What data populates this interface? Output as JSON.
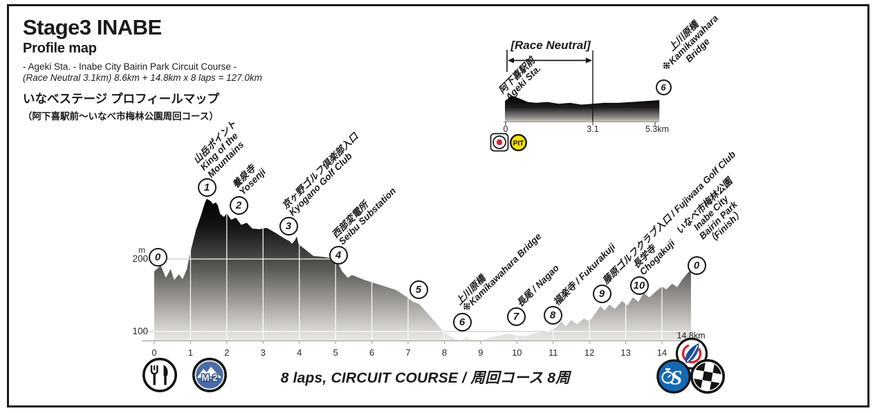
{
  "header": {
    "title": "Stage3 INABE",
    "subtitle": "Profile map",
    "course_line": "- Ageki Sta. - Inabe City Bairin Park Circuit Course -",
    "distance_line": "(Race Neutral 3.1km) 8.6km + 14.8km x 8 laps = 127.0km",
    "title_jp": "いなべステージ プロフィールマップ",
    "subtitle_jp": "（阿下喜駅前～いなべ市梅林公園周回コース）"
  },
  "neutral_section": {
    "heading": "[Race Neutral]",
    "start_label": [
      "阿下喜駅前",
      "Ageki Sta."
    ],
    "end_label": [
      "上川原橋",
      "※Kamikawahara",
      "Bridge"
    ],
    "end_marker": "6",
    "x_ticks": [
      "0",
      "3.1",
      "5.3km"
    ],
    "pit_badge": "PIT"
  },
  "main_chart": {
    "y_unit": "m",
    "y_ticks": [
      "200",
      "100"
    ],
    "x_ticks": [
      "0",
      "1",
      "2",
      "3",
      "4",
      "5",
      "6",
      "7",
      "8",
      "9",
      "10",
      "11",
      "12",
      "13",
      "14"
    ],
    "x_end_label": "14.8km",
    "start_marker": "0",
    "checkpoints": [
      {
        "marker": "1",
        "lines": [
          "山岳ポイント",
          "King of the",
          "Mountains"
        ]
      },
      {
        "marker": "2",
        "lines": [
          "養泉寺",
          "Yosenji"
        ]
      },
      {
        "marker": "3",
        "lines": [
          "京ヶ野ゴルフ倶楽部入口",
          "Kyogano Golf Club"
        ]
      },
      {
        "marker": "4",
        "lines": [
          "西部変電所",
          "Seibu Substation"
        ]
      },
      {
        "marker": "5",
        "lines": []
      },
      {
        "marker": "6",
        "lines": [
          "上川原橋",
          "※Kamikawahara Bridge"
        ]
      },
      {
        "marker": "7",
        "lines": [
          "長尾 / Nagao"
        ]
      },
      {
        "marker": "8",
        "lines": [
          "福楽寺 / Fukurakuji"
        ]
      },
      {
        "marker": "9",
        "lines": [
          "藤原ゴルフクラブ入口 / Fujiwara Golf Club"
        ]
      },
      {
        "marker": "10",
        "lines": [
          "長学寺",
          "Chogakuji"
        ]
      },
      {
        "marker": "0",
        "lines": [
          "いなべ市梅林公園",
          "Inabe City",
          "Bairin Park",
          "（Finish）"
        ],
        "align": "center"
      }
    ]
  },
  "footer": {
    "laps_text": "8 laps, CIRCUIT COURSE / 周回コース 8周"
  },
  "badges": {
    "mountain_badge_label": "M-2",
    "sprint_letter": "S"
  },
  "colors": {
    "mountain_badge_blue": "#4a6da7",
    "sprint_blue": "#1569b3",
    "pit_yellow": "#f8e100",
    "flag_red": "#d6252c",
    "logo_red": "#d6252c",
    "logo_blue": "#1b4f9c"
  },
  "chart_data": [
    {
      "type": "area",
      "title": "Stage3 INABE elevation profile",
      "xlabel": "km",
      "ylabel": "m",
      "xlim": [
        0,
        14.8
      ],
      "y_gridlines": [
        100,
        200
      ],
      "x_ticks": [
        0,
        1,
        2,
        3,
        4,
        5,
        6,
        7,
        8,
        9,
        10,
        11,
        12,
        13,
        14
      ],
      "checkpoint_km": [
        0,
        1.45,
        2.33,
        3.7,
        5.05,
        7.29,
        8.49,
        9.98,
        10.99,
        12.35,
        13.38,
        14.8
      ],
      "points": [
        [
          0,
          183
        ],
        [
          0.18,
          191
        ],
        [
          0.32,
          174
        ],
        [
          0.45,
          186
        ],
        [
          0.55,
          171
        ],
        [
          0.68,
          179
        ],
        [
          0.78,
          172
        ],
        [
          0.9,
          186
        ],
        [
          1.0,
          210
        ],
        [
          1.15,
          240
        ],
        [
          1.3,
          262
        ],
        [
          1.4,
          278
        ],
        [
          1.45,
          283
        ],
        [
          1.55,
          280
        ],
        [
          1.62,
          276
        ],
        [
          1.7,
          278
        ],
        [
          1.75,
          274
        ],
        [
          1.82,
          262
        ],
        [
          1.92,
          258
        ],
        [
          2.0,
          263
        ],
        [
          2.12,
          254
        ],
        [
          2.25,
          257
        ],
        [
          2.4,
          247
        ],
        [
          2.55,
          250
        ],
        [
          2.7,
          242
        ],
        [
          2.9,
          241
        ],
        [
          3.1,
          243
        ],
        [
          3.35,
          236
        ],
        [
          3.5,
          231
        ],
        [
          3.6,
          228
        ],
        [
          3.72,
          225
        ],
        [
          3.8,
          221
        ],
        [
          3.88,
          226
        ],
        [
          3.93,
          231
        ],
        [
          3.98,
          220
        ],
        [
          4.14,
          214
        ],
        [
          4.39,
          204
        ],
        [
          4.66,
          203
        ],
        [
          4.9,
          201
        ],
        [
          5.0,
          200
        ],
        [
          5.05,
          196
        ],
        [
          5.18,
          183
        ],
        [
          5.34,
          174
        ],
        [
          5.45,
          178
        ],
        [
          5.6,
          175
        ],
        [
          5.8,
          171
        ],
        [
          6.05,
          167
        ],
        [
          6.37,
          162
        ],
        [
          6.68,
          157
        ],
        [
          6.95,
          148
        ],
        [
          7.13,
          141
        ],
        [
          7.3,
          138
        ],
        [
          7.5,
          127
        ],
        [
          7.7,
          116
        ],
        [
          7.9,
          104
        ],
        [
          8.1,
          95
        ],
        [
          8.3,
          90
        ],
        [
          8.45,
          87
        ],
        [
          8.6,
          92
        ],
        [
          8.75,
          89
        ],
        [
          9.0,
          87
        ],
        [
          9.2,
          91
        ],
        [
          9.5,
          94
        ],
        [
          9.75,
          97
        ],
        [
          9.95,
          95
        ],
        [
          10.2,
          93
        ],
        [
          10.45,
          97
        ],
        [
          10.7,
          99
        ],
        [
          10.95,
          102
        ],
        [
          11.1,
          106
        ],
        [
          11.22,
          114
        ],
        [
          11.35,
          107
        ],
        [
          11.5,
          116
        ],
        [
          11.65,
          110
        ],
        [
          11.85,
          118
        ],
        [
          12.0,
          114
        ],
        [
          12.15,
          124
        ],
        [
          12.3,
          135
        ],
        [
          12.42,
          129
        ],
        [
          12.55,
          137
        ],
        [
          12.7,
          131
        ],
        [
          12.9,
          142
        ],
        [
          13.05,
          136
        ],
        [
          13.2,
          147
        ],
        [
          13.35,
          141
        ],
        [
          13.5,
          153
        ],
        [
          13.65,
          147
        ],
        [
          13.85,
          156
        ],
        [
          14.0,
          162
        ],
        [
          14.12,
          158
        ],
        [
          14.28,
          166
        ],
        [
          14.42,
          161
        ],
        [
          14.58,
          173
        ],
        [
          14.8,
          186
        ]
      ]
    },
    {
      "type": "area",
      "title": "Race Neutral section profile",
      "xlabel": "km",
      "xlim": [
        0,
        5.3
      ],
      "x_ticks": [
        0,
        3.1,
        5.3
      ],
      "neutral_end_km": 3.1,
      "points": [
        [
          0,
          168
        ],
        [
          0.25,
          174
        ],
        [
          0.5,
          171
        ],
        [
          0.8,
          167
        ],
        [
          1.1,
          166
        ],
        [
          1.5,
          167
        ],
        [
          1.9,
          165
        ],
        [
          2.3,
          166
        ],
        [
          2.7,
          164
        ],
        [
          3.1,
          165
        ],
        [
          3.5,
          166
        ],
        [
          4.0,
          166
        ],
        [
          4.5,
          167
        ],
        [
          5.0,
          168
        ],
        [
          5.45,
          169
        ]
      ]
    }
  ]
}
